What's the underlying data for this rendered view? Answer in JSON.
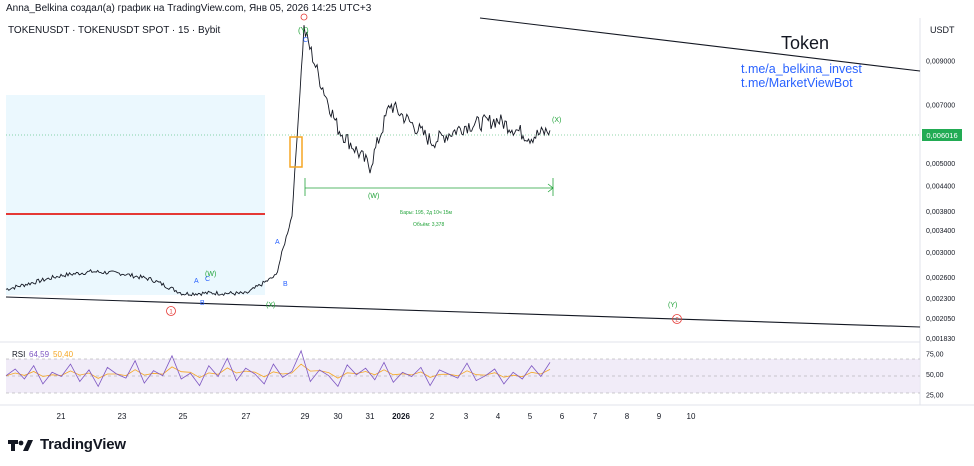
{
  "header": {
    "author_line": "Anna_Belkina создал(а) график на TradingView.com, Янв 05, 2026 14:25 UTC+3",
    "symbol_line": "TOKENUSDT · TOKENUSDT SPOT · 15 · Bybit",
    "currency": "USDT"
  },
  "footer": {
    "brand": "TradingView"
  },
  "chart_data": {
    "type": "line",
    "title": "",
    "scale": "log",
    "ylim": [
      0.00183,
      0.0115
    ],
    "y_ticks": [
      "0,009000",
      "0,007000",
      "0,006000",
      "0,005000",
      "0,004400",
      "0,003800",
      "0,003400",
      "0,003000",
      "0,002600",
      "0,002300",
      "0,002050",
      "0,001830"
    ],
    "y_tick_values": [
      0.009,
      0.007,
      0.006,
      0.005,
      0.0044,
      0.0038,
      0.0034,
      0.003,
      0.0026,
      0.0023,
      0.00205,
      0.00183
    ],
    "x_ticks": [
      "21",
      "23",
      "25",
      "27",
      "29",
      "30",
      "31",
      "2026",
      "2",
      "3",
      "4",
      "5",
      "6",
      "7",
      "8",
      "9",
      "10"
    ],
    "last_price": "0,006016",
    "series": [
      {
        "x": [
          "Dec 20",
          "Dec 21",
          "Dec 22",
          "Dec 23",
          "Dec 24",
          "Dec 25",
          "Dec 26",
          "Dec 27",
          "Dec 28",
          "Dec 28 12h",
          "Dec 29",
          "Dec 29 12h",
          "Dec 30",
          "Dec 31",
          "Jan 1",
          "Jan 2",
          "Jan 3",
          "Jan 4",
          "Jan 5",
          "Jan 5 12h"
        ],
        "values": [
          0.00242,
          0.00262,
          0.00268,
          0.00265,
          0.00256,
          0.00236,
          0.00237,
          0.00236,
          0.00262,
          0.0037,
          0.0108,
          0.00805,
          0.0061,
          0.0049,
          0.007,
          0.00565,
          0.0062,
          0.0064,
          0.0058,
          0.00603
        ]
      }
    ],
    "annotations": {
      "token_label": "Token",
      "link1": "t.me/a_belkina_invest",
      "link2": "t.me/MarketViewBot",
      "wave_labels": [
        "(Y)",
        "C",
        "(X)",
        "(W)",
        "(X)",
        "(Y)",
        "A",
        "B",
        "A",
        "C",
        "(W)",
        "B"
      ],
      "circle_labels": [
        "1",
        "2"
      ],
      "measure_line1": "Бары: 195, 2д 10ч 15м",
      "measure_line2": "Объём: 3,378"
    },
    "rsi": {
      "label": "RSI",
      "value1": "64,59",
      "value2": "50,40",
      "y_ticks": [
        "75,00",
        "50,00",
        "25,00"
      ],
      "ylim": [
        15,
        85
      ],
      "upper": 70,
      "lower": 30,
      "values": [
        48,
        56,
        44,
        60,
        38,
        52,
        47,
        62,
        41,
        55,
        35,
        58,
        50,
        45,
        66,
        39,
        54,
        48,
        72,
        44,
        51,
        36,
        60,
        47,
        69,
        42,
        57,
        50,
        38,
        62,
        46,
        53,
        78,
        41,
        55,
        48,
        35,
        61,
        49,
        57,
        43,
        64,
        40,
        52,
        47,
        58,
        36,
        55,
        50,
        45,
        63,
        42,
        48,
        56,
        38,
        52,
        44,
        60,
        47,
        64
      ]
    },
    "colors": {
      "price": "#131722",
      "red_level": "#e53935",
      "wave_green": "#22a33a",
      "wave_blue": "#2962ff",
      "circle_red": "#e53935",
      "rsi_line": "#7e57c2",
      "rsi_ma": "#f5a623",
      "link": "#2962ff",
      "last_price_bg": "#22ab54"
    }
  }
}
